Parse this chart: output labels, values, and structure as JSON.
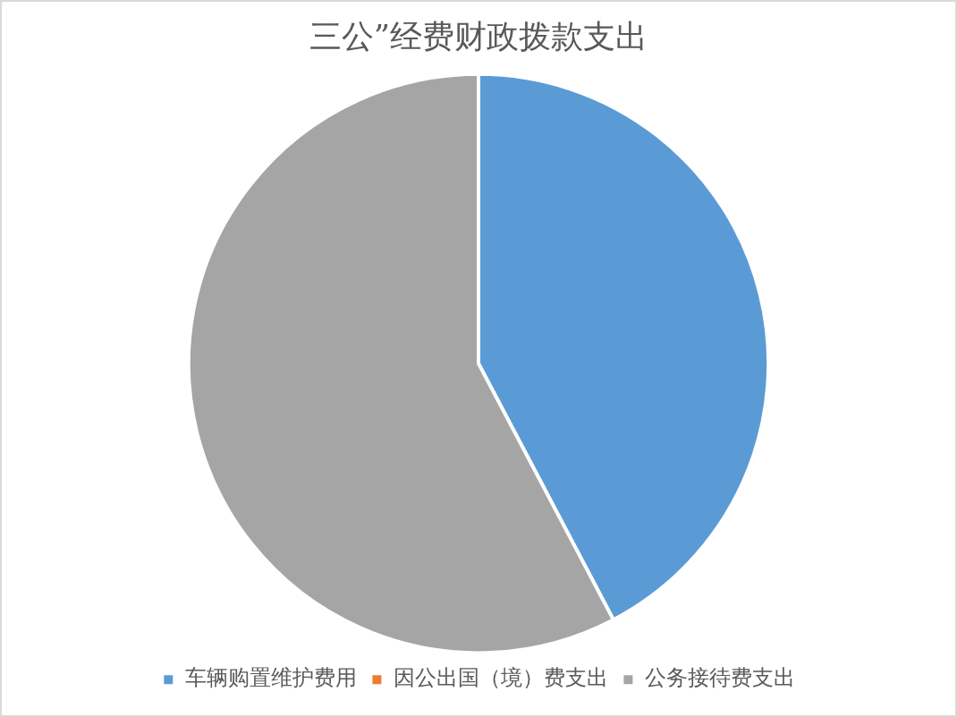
{
  "chart_data": {
    "type": "pie",
    "title": "三公”经费财政拨款支出",
    "categories": [
      "车辆购置维护费用",
      "因公出国（境）费支出",
      "公务接待费支出"
    ],
    "values": [
      42.3,
      0,
      57.7
    ],
    "colors": [
      "#5b9bd5",
      "#ed7d31",
      "#a5a5a5"
    ],
    "legend": "bottom"
  }
}
